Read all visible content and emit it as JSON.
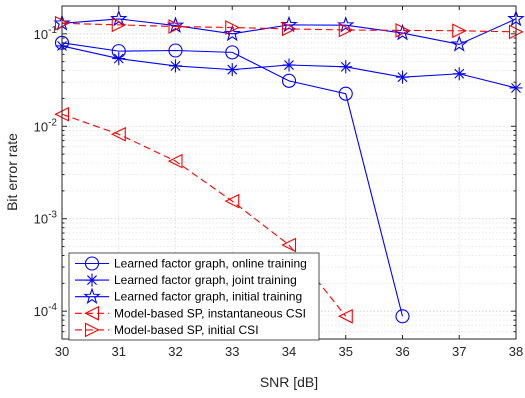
{
  "chart_data": {
    "type": "line",
    "xlabel": "SNR [dB]",
    "ylabel": "Bit error rate",
    "xlim": [
      30,
      38
    ],
    "ylim": [
      5e-05,
      0.2
    ],
    "yscale": "log",
    "grid": true,
    "legend_position": "bottom-left",
    "x": [
      30,
      31,
      32,
      33,
      34,
      35,
      36,
      37,
      38
    ],
    "xticks": [
      "30",
      "31",
      "32",
      "33",
      "34",
      "35",
      "36",
      "37",
      "38"
    ],
    "yticks": [
      {
        "value": 0.1,
        "base": "10",
        "exp": "-1"
      },
      {
        "value": 0.01,
        "base": "10",
        "exp": "-2"
      },
      {
        "value": 0.001,
        "base": "10",
        "exp": "-3"
      },
      {
        "value": 0.0001,
        "base": "10",
        "exp": "-4"
      }
    ],
    "series": [
      {
        "name": "Learned factor graph, online training",
        "color": "#0000ff",
        "dash": "solid",
        "marker": "circle",
        "x": [
          30,
          31,
          32,
          33,
          34,
          35,
          36
        ],
        "y": [
          0.08,
          0.065,
          0.066,
          0.063,
          0.031,
          0.0225,
          8.8e-05
        ]
      },
      {
        "name": "Learned factor graph, joint training",
        "color": "#0000ff",
        "dash": "solid",
        "marker": "asterisk",
        "x": [
          30,
          31,
          32,
          33,
          34,
          35,
          36,
          37,
          38
        ],
        "y": [
          0.074,
          0.054,
          0.045,
          0.041,
          0.046,
          0.044,
          0.034,
          0.037,
          0.026
        ]
      },
      {
        "name": "Learned factor graph, initial training",
        "color": "#0000ff",
        "dash": "solid",
        "marker": "pentagram",
        "x": [
          30,
          31,
          32,
          33,
          34,
          35,
          36,
          37,
          38
        ],
        "y": [
          0.13,
          0.145,
          0.123,
          0.1,
          0.125,
          0.124,
          0.102,
          0.077,
          0.145
        ]
      },
      {
        "name": "Model-based SP, instantaneous CSI",
        "color": "#ff0000",
        "dash": "dashed",
        "marker": "triangle-left",
        "x": [
          30,
          31,
          32,
          33,
          34,
          35
        ],
        "y": [
          0.0135,
          0.0082,
          0.0042,
          0.00155,
          0.00052,
          8.8e-05
        ]
      },
      {
        "name": "Model-based SP, initial CSI",
        "color": "#ff0000",
        "dash": "dashed",
        "marker": "triangle-right",
        "x": [
          30,
          31,
          32,
          33,
          34,
          35,
          36,
          37,
          38
        ],
        "y": [
          0.13,
          0.125,
          0.12,
          0.117,
          0.113,
          0.11,
          0.109,
          0.108,
          0.105
        ]
      }
    ]
  }
}
